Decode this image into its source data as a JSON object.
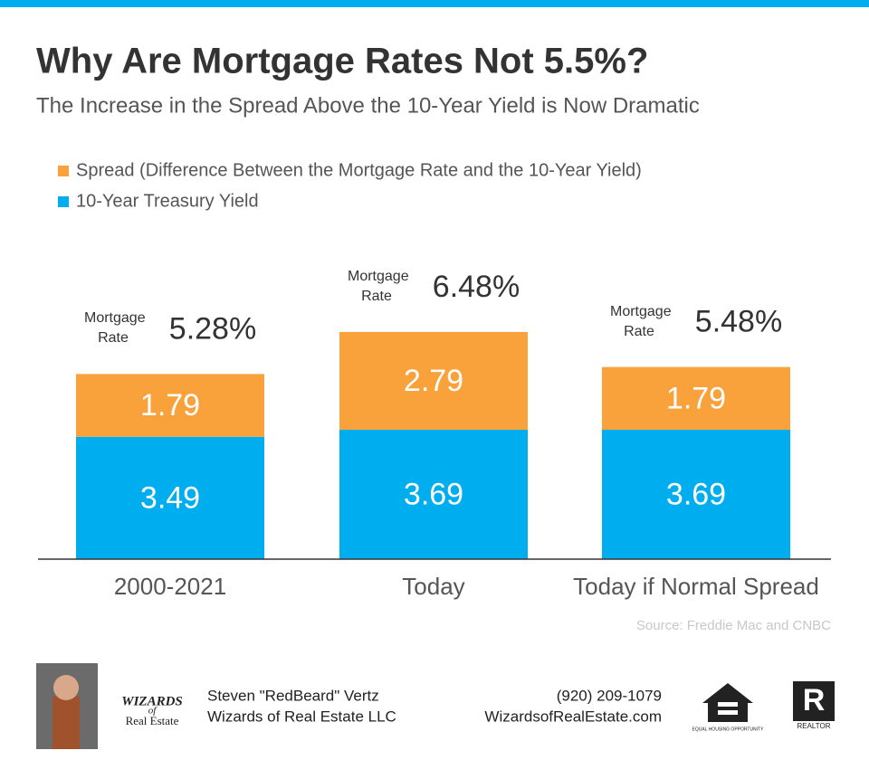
{
  "chart_data": {
    "type": "stacked_bar",
    "title": "Why Are Mortgage Rates Not 5.5%?",
    "subtitle": "The Increase in the Spread Above the 10-Year Yield is Now Dramatic",
    "categories": [
      "2000-2021",
      "Today",
      "Today if Normal Spread"
    ],
    "series": [
      {
        "name": "10-Year Treasury Yield",
        "color": "#00aeef",
        "values": [
          3.49,
          3.69,
          3.69
        ]
      },
      {
        "name": "Spread (Difference Between the Mortgage Rate and the 10-Year Yield)",
        "color": "#f9a13a",
        "values": [
          1.79,
          2.79,
          1.79
        ]
      }
    ],
    "totals": {
      "label": "Mortgage Rate",
      "values": [
        5.28,
        6.48,
        5.48
      ],
      "value_labels": [
        "5.28%",
        "6.48%",
        "5.48%"
      ]
    },
    "ylim": [
      0,
      8
    ],
    "source": "Source: Freddie Mac and CNBC"
  },
  "footer": {
    "name": "Steven \"RedBeard\" Vertz",
    "company": "Wizards of Real Estate LLC",
    "phone": "(920) 209-1079",
    "website": "WizardsofRealEstate.com",
    "logo_top": "WIZARDS",
    "logo_mid": "of",
    "logo_bottom": "Real Estate",
    "equal_housing": "EQUAL HOUSING OPPORTUNITY",
    "realtor": "REALTOR"
  }
}
